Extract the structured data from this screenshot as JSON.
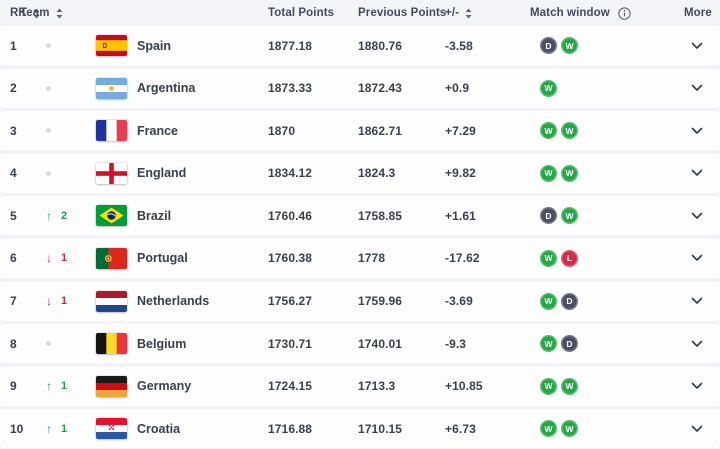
{
  "table": {
    "columns": [
      {
        "label": "RK",
        "sortable": true
      },
      {
        "label": "Team",
        "sortable": true
      },
      {
        "label": "Total Points",
        "sortable": false
      },
      {
        "label": "Previous Points",
        "sortable": false
      },
      {
        "label": "+/-",
        "sortable": true
      },
      {
        "label": "Match window",
        "sortable": false,
        "has_info_icon": true
      },
      {
        "label": "More",
        "sortable": false
      }
    ],
    "rows": [
      {
        "rank": "1",
        "movement": {
          "direction": "none",
          "amount": ""
        },
        "team": "Spain",
        "flag_code": "es",
        "total_points": "1877.18",
        "previous_points": "1880.76",
        "change": "-3.58",
        "match_window": [
          "D",
          "W"
        ]
      },
      {
        "rank": "2",
        "movement": {
          "direction": "none",
          "amount": ""
        },
        "team": "Argentina",
        "flag_code": "ar",
        "total_points": "1873.33",
        "previous_points": "1872.43",
        "change": "+0.9",
        "match_window": [
          "W"
        ]
      },
      {
        "rank": "3",
        "movement": {
          "direction": "none",
          "amount": ""
        },
        "team": "France",
        "flag_code": "fr",
        "total_points": "1870",
        "previous_points": "1862.71",
        "change": "+7.29",
        "match_window": [
          "W",
          "W"
        ]
      },
      {
        "rank": "4",
        "movement": {
          "direction": "none",
          "amount": ""
        },
        "team": "England",
        "flag_code": "en",
        "total_points": "1834.12",
        "previous_points": "1824.3",
        "change": "+9.82",
        "match_window": [
          "W",
          "W"
        ]
      },
      {
        "rank": "5",
        "movement": {
          "direction": "up",
          "amount": "2"
        },
        "team": "Brazil",
        "flag_code": "br",
        "total_points": "1760.46",
        "previous_points": "1758.85",
        "change": "+1.61",
        "match_window": [
          "D",
          "W"
        ]
      },
      {
        "rank": "6",
        "movement": {
          "direction": "down",
          "amount": "1"
        },
        "team": "Portugal",
        "flag_code": "pt",
        "total_points": "1760.38",
        "previous_points": "1778",
        "change": "-17.62",
        "match_window": [
          "W",
          "L"
        ]
      },
      {
        "rank": "7",
        "movement": {
          "direction": "down",
          "amount": "1"
        },
        "team": "Netherlands",
        "flag_code": "nl",
        "total_points": "1756.27",
        "previous_points": "1759.96",
        "change": "-3.69",
        "match_window": [
          "W",
          "D"
        ]
      },
      {
        "rank": "8",
        "movement": {
          "direction": "none",
          "amount": ""
        },
        "team": "Belgium",
        "flag_code": "be",
        "total_points": "1730.71",
        "previous_points": "1740.01",
        "change": "-9.3",
        "match_window": [
          "W",
          "D"
        ]
      },
      {
        "rank": "9",
        "movement": {
          "direction": "up",
          "amount": "1"
        },
        "team": "Germany",
        "flag_code": "de",
        "total_points": "1724.15",
        "previous_points": "1713.3",
        "change": "+10.85",
        "match_window": [
          "W",
          "W"
        ]
      },
      {
        "rank": "10",
        "movement": {
          "direction": "up",
          "amount": "1"
        },
        "team": "Croatia",
        "flag_code": "hr",
        "total_points": "1716.88",
        "previous_points": "1710.15",
        "change": "+6.73",
        "match_window": [
          "W",
          "W"
        ]
      }
    ]
  },
  "icons": {
    "sort": "sort-arrows-icon",
    "info": "info-circle-icon",
    "expand": "chevron-down-icon",
    "up": "up-arrow-icon",
    "down": "down-arrow-icon",
    "no_change": "no-change-dot"
  },
  "colors": {
    "page_bg": "#f3f4f8",
    "row_bg": "#fdfdfe",
    "text": "#38414f",
    "header_text": "#414b5e",
    "green": "#1f9e4c",
    "red": "#c62a44",
    "badge_win": "#23a844",
    "badge_draw": "#4b4f63",
    "badge_loss": "#d42a47",
    "dot": "#d9dbe1"
  }
}
